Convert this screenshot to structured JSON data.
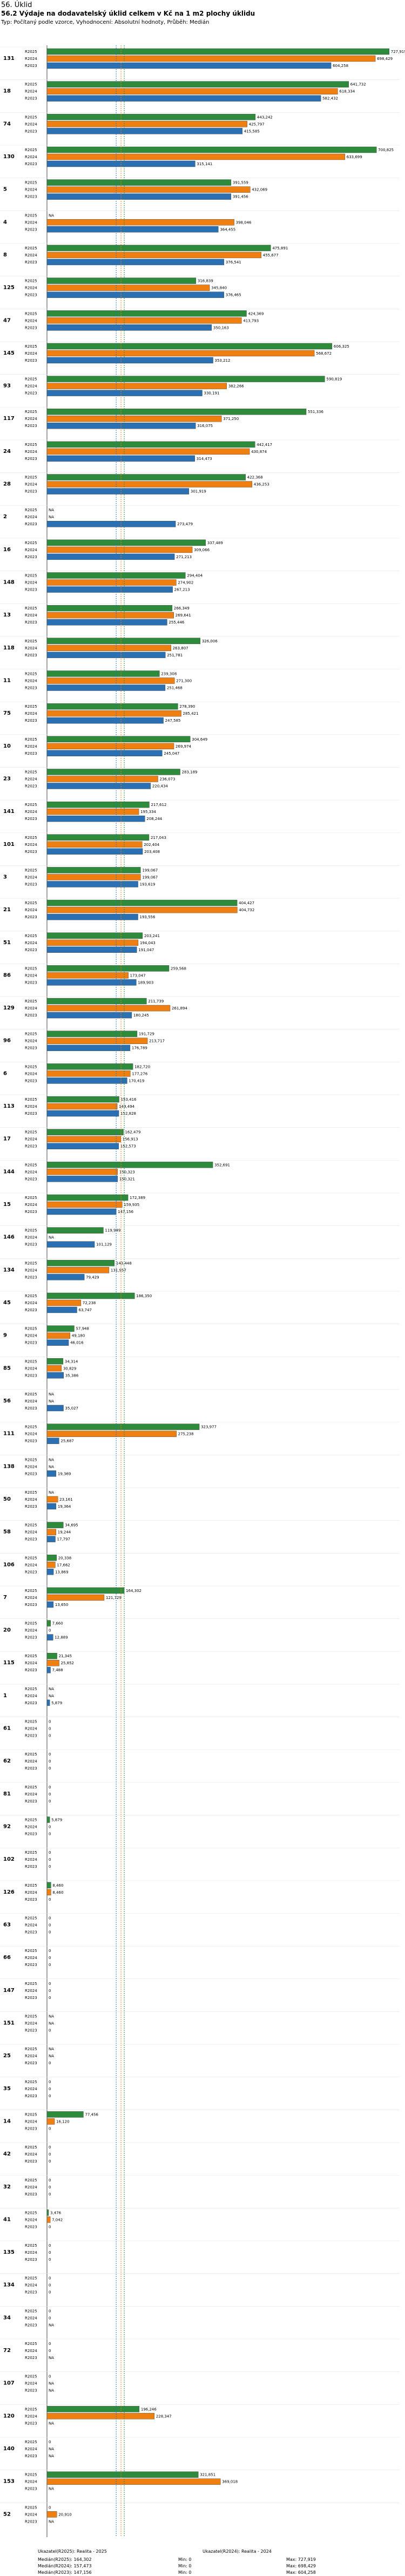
{
  "header": {
    "section": "56. Úklid",
    "title": "56.2 Výdaje na dodavatelský úklid celkem v Kč na 1 m2 plochy úklidu",
    "subtitle": "Typ: Počítaný podle vzorce, Vyhodnocení: Absolutní hodnoty, Průběh: Medián"
  },
  "colors": {
    "r2025": "#2e8b3c",
    "r2024": "#f07f12",
    "r2023": "#2a70b3",
    "line2025": "#2e8b3c",
    "line2024": "#f07f12",
    "line2023": "#2a70b3",
    "grid": "#bbbbbb"
  },
  "footer": {
    "items": [
      "Ukazatel(R2025): Realita - 2025",
      "Ukazatel(R2024): Realita - 2024",
      "Medián(R2025): 164,302",
      "Min: 0",
      "Max: 727,919",
      "Medián(R2024): 157,473",
      "Min: 0",
      "Max: 698,429",
      "Medián(R2023): 147,156",
      "Min: 0",
      "Max: 604,258"
    ]
  },
  "chart_data": {
    "type": "bar",
    "orientation": "horizontal",
    "title": "56.2 Výdaje na dodavatelský úklid celkem v Kč na 1 m2 plochy úklidu",
    "series_names": [
      "R2025",
      "R2024",
      "R2023"
    ],
    "xlim": [
      0,
      750
    ],
    "medians": {
      "R2025": 164.302,
      "R2024": 157.473,
      "R2023": 147.156
    },
    "groups": [
      {
        "id": "131",
        "values": [
          727.919,
          698.429,
          604.258
        ],
        "labels": [
          "727,919",
          "698,429",
          "604,258"
        ]
      },
      {
        "id": "18",
        "values": [
          641.732,
          618.334,
          582.432
        ],
        "labels": [
          "641,732",
          "618,334",
          "582,432"
        ]
      },
      {
        "id": "74",
        "values": [
          443.242,
          425.797,
          415.585
        ],
        "labels": [
          "443,242",
          "425,797",
          "415,585"
        ]
      },
      {
        "id": "130",
        "values": [
          700.825,
          633.699,
          315.141
        ],
        "labels": [
          "700,825",
          "633,699",
          "315,141"
        ]
      },
      {
        "id": "5",
        "values": [
          391.559,
          432.069,
          391.456
        ],
        "labels": [
          "391,559",
          "432,069",
          "391,456"
        ]
      },
      {
        "id": "4",
        "values": [
          null,
          398.046,
          364.455
        ],
        "labels": [
          "NA",
          "398,046",
          "364,455"
        ]
      },
      {
        "id": "8",
        "values": [
          475.891,
          455.677,
          376.541
        ],
        "labels": [
          "475,891",
          "455,677",
          "376,541"
        ]
      },
      {
        "id": "125",
        "values": [
          316.839,
          345.84,
          376.465
        ],
        "labels": [
          "316,839",
          "345,840",
          "376,465"
        ]
      },
      {
        "id": "47",
        "values": [
          424.369,
          413.793,
          350.163
        ],
        "labels": [
          "424,369",
          "413,793",
          "350,163"
        ]
      },
      {
        "id": "145",
        "values": [
          606.325,
          568.672,
          353.212
        ],
        "labels": [
          "606,325",
          "568,672",
          "353,212"
        ]
      },
      {
        "id": "93",
        "values": [
          590.819,
          382.266,
          330.191
        ],
        "labels": [
          "590,819",
          "382,266",
          "330,191"
        ]
      },
      {
        "id": "117",
        "values": [
          551.336,
          371.25,
          316.075
        ],
        "labels": [
          "551,336",
          "371,250",
          "316,075"
        ]
      },
      {
        "id": "24",
        "values": [
          442.417,
          430.874,
          314.473
        ],
        "labels": [
          "442,417",
          "430,874",
          "314,473"
        ]
      },
      {
        "id": "28",
        "values": [
          422.368,
          436.253,
          301.919
        ],
        "labels": [
          "422,368",
          "436,253",
          "301,919"
        ]
      },
      {
        "id": "2",
        "values": [
          null,
          null,
          273.479
        ],
        "labels": [
          "NA",
          "NA",
          "273,479"
        ]
      },
      {
        "id": "16",
        "values": [
          337.489,
          309.066,
          271.213
        ],
        "labels": [
          "337,489",
          "309,066",
          "271,213"
        ]
      },
      {
        "id": "148",
        "values": [
          294.404,
          274.902,
          267.213
        ],
        "labels": [
          "294,404",
          "274,902",
          "267,213"
        ]
      },
      {
        "id": "13",
        "values": [
          266.349,
          269.641,
          255.446
        ],
        "labels": [
          "266,349",
          "269,641",
          "255,446"
        ]
      },
      {
        "id": "118",
        "values": [
          326.006,
          263.807,
          251.781
        ],
        "labels": [
          "326,006",
          "263,807",
          "251,781"
        ]
      },
      {
        "id": "11",
        "values": [
          239.308,
          271.3,
          251.468
        ],
        "labels": [
          "239,308",
          "271,300",
          "251,468"
        ]
      },
      {
        "id": "75",
        "values": [
          278.39,
          285.421,
          247.585
        ],
        "labels": [
          "278,390",
          "285,421",
          "247,585"
        ]
      },
      {
        "id": "10",
        "values": [
          304.649,
          269.974,
          245.047
        ],
        "labels": [
          "304,649",
          "269,974",
          "245,047"
        ]
      },
      {
        "id": "23",
        "values": [
          283.189,
          236.073,
          220.434
        ],
        "labels": [
          "283,189",
          "236,073",
          "220,434"
        ]
      },
      {
        "id": "141",
        "values": [
          217.612,
          195.334,
          208.244
        ],
        "labels": [
          "217,612",
          "195,334",
          "208,244"
        ]
      },
      {
        "id": "101",
        "values": [
          217.043,
          202.404,
          203.408
        ],
        "labels": [
          "217,043",
          "202,404",
          "203,408"
        ]
      },
      {
        "id": "3",
        "values": [
          199.067,
          199.067,
          193.619
        ],
        "labels": [
          "199,067",
          "199,067",
          "193,619"
        ]
      },
      {
        "id": "21",
        "values": [
          404.427,
          404.732,
          193.556
        ],
        "labels": [
          "404,427",
          "404,732",
          "193,556"
        ]
      },
      {
        "id": "51",
        "values": [
          203.241,
          194.043,
          191.047
        ],
        "labels": [
          "203,241",
          "194,043",
          "191,047"
        ]
      },
      {
        "id": "86",
        "values": [
          259.568,
          173.047,
          189.903
        ],
        "labels": [
          "259,568",
          "173,047",
          "189,903"
        ]
      },
      {
        "id": "129",
        "values": [
          211.739,
          261.894,
          180.245
        ],
        "labels": [
          "211,739",
          "261,894",
          "180,245"
        ]
      },
      {
        "id": "96",
        "values": [
          191.729,
          213.717,
          176.789
        ],
        "labels": [
          "191,729",
          "213,717",
          "176,789"
        ]
      },
      {
        "id": "6",
        "values": [
          182.72,
          177.276,
          170.419
        ],
        "labels": [
          "182,720",
          "177,276",
          "170,419"
        ]
      },
      {
        "id": "113",
        "values": [
          153.416,
          149.494,
          152.828
        ],
        "labels": [
          "153,416",
          "149,494",
          "152,828"
        ]
      },
      {
        "id": "17",
        "values": [
          162.479,
          156.913,
          152.573
        ],
        "labels": [
          "162,479",
          "156,913",
          "152,573"
        ]
      },
      {
        "id": "144",
        "values": [
          352.691,
          150.323,
          150.321
        ],
        "labels": [
          "352,691",
          "150,323",
          "150,321"
        ]
      },
      {
        "id": "15",
        "values": [
          172.389,
          159.935,
          147.156
        ],
        "labels": [
          "172,389",
          "159,935",
          "147,156"
        ]
      },
      {
        "id": "146",
        "values": [
          119.949,
          null,
          101.129
        ],
        "labels": [
          "119,949",
          "NA",
          "101,129"
        ]
      },
      {
        "id": "134",
        "values": [
          143.448,
          131.957,
          79.429
        ],
        "labels": [
          "143,448",
          "131,957",
          "79,429"
        ]
      },
      {
        "id": "45",
        "values": [
          186.35,
          72.238,
          63.747
        ],
        "labels": [
          "186,350",
          "72,238",
          "63,747"
        ]
      },
      {
        "id": "9",
        "values": [
          57.948,
          49.18,
          46.016
        ],
        "labels": [
          "57,948",
          "49,180",
          "46,016"
        ]
      },
      {
        "id": "85",
        "values": [
          34.314,
          30.829,
          35.386
        ],
        "labels": [
          "34,314",
          "30,829",
          "35,386"
        ]
      },
      {
        "id": "56",
        "values": [
          null,
          null,
          35.027
        ],
        "labels": [
          "NA",
          "NA",
          "35,027"
        ]
      },
      {
        "id": "111",
        "values": [
          323.977,
          275.238,
          25.687
        ],
        "labels": [
          "323,977",
          "275,238",
          "25,687"
        ]
      },
      {
        "id": "138",
        "values": [
          null,
          null,
          19.369
        ],
        "labels": [
          "NA",
          "NA",
          "19,369"
        ]
      },
      {
        "id": "50",
        "values": [
          null,
          23.161,
          19.364
        ],
        "labels": [
          "NA",
          "23,161",
          "19,364"
        ]
      },
      {
        "id": "58",
        "values": [
          34.695,
          19.244,
          17.797
        ],
        "labels": [
          "34,695",
          "19,244",
          "17,797"
        ]
      },
      {
        "id": "106",
        "values": [
          20.338,
          17.662,
          13.869
        ],
        "labels": [
          "20,338",
          "17,662",
          "13,869"
        ]
      },
      {
        "id": "7",
        "values": [
          164.302,
          121.729,
          13.65
        ],
        "labels": [
          "164,302",
          "121,729",
          "13,650"
        ]
      },
      {
        "id": "20",
        "values": [
          7.66,
          0,
          12.889
        ],
        "labels": [
          "7,660",
          "0",
          "12,889"
        ]
      },
      {
        "id": "115",
        "values": [
          21.345,
          25.852,
          7.488
        ],
        "labels": [
          "21,345",
          "25,852",
          "7,488"
        ]
      },
      {
        "id": "1",
        "values": [
          null,
          null,
          5.879
        ],
        "labels": [
          "NA",
          "NA",
          "5,879"
        ]
      },
      {
        "id": "61",
        "values": [
          0,
          0,
          0
        ],
        "labels": [
          "0",
          "0",
          "0"
        ]
      },
      {
        "id": "62",
        "values": [
          0,
          0,
          0
        ],
        "labels": [
          "0",
          "0",
          "0"
        ]
      },
      {
        "id": "81",
        "values": [
          0,
          0,
          0
        ],
        "labels": [
          "0",
          "0",
          "0"
        ]
      },
      {
        "id": "92",
        "values": [
          5.879,
          0,
          0
        ],
        "labels": [
          "5,879",
          "0",
          "0"
        ]
      },
      {
        "id": "102",
        "values": [
          0,
          0,
          0
        ],
        "labels": [
          "0",
          "0",
          "0"
        ]
      },
      {
        "id": "126",
        "values": [
          8.46,
          8.46,
          0
        ],
        "labels": [
          "8,460",
          "8,460",
          "0"
        ]
      },
      {
        "id": "63",
        "values": [
          0,
          0,
          0
        ],
        "labels": [
          "0",
          "0",
          "0"
        ]
      },
      {
        "id": "66",
        "values": [
          0,
          0,
          0
        ],
        "labels": [
          "0",
          "0",
          "0"
        ]
      },
      {
        "id": "147",
        "values": [
          0,
          0,
          0
        ],
        "labels": [
          "0",
          "0",
          "0"
        ]
      },
      {
        "id": "151",
        "values": [
          null,
          null,
          0
        ],
        "labels": [
          "NA",
          "NA",
          "0"
        ]
      },
      {
        "id": "25",
        "values": [
          null,
          null,
          0
        ],
        "labels": [
          "NA",
          "NA",
          "0"
        ]
      },
      {
        "id": "35",
        "values": [
          0,
          0,
          0
        ],
        "labels": [
          "0",
          "0",
          "0"
        ]
      },
      {
        "id": "14",
        "values": [
          77.456,
          16.12,
          0
        ],
        "labels": [
          "77,456",
          "16,120",
          "0"
        ]
      },
      {
        "id": "42",
        "values": [
          0,
          0,
          0
        ],
        "labels": [
          "0",
          "0",
          "0"
        ]
      },
      {
        "id": "32",
        "values": [
          0,
          0,
          0
        ],
        "labels": [
          "0",
          "0",
          "0"
        ]
      },
      {
        "id": "41",
        "values": [
          3.476,
          7.042,
          0
        ],
        "labels": [
          "3,476",
          "7,042",
          "0"
        ]
      },
      {
        "id": "135",
        "values": [
          0,
          0,
          0
        ],
        "labels": [
          "0",
          "0",
          "0"
        ]
      },
      {
        "id": "134",
        "values": [
          0,
          0,
          0
        ],
        "labels": [
          "0",
          "0",
          "0"
        ]
      },
      {
        "id": "34",
        "values": [
          0,
          0,
          null
        ],
        "labels": [
          "0",
          "0",
          "NA"
        ]
      },
      {
        "id": "72",
        "values": [
          0,
          0,
          null
        ],
        "labels": [
          "0",
          "0",
          "NA"
        ]
      },
      {
        "id": "107",
        "values": [
          0,
          null,
          null
        ],
        "labels": [
          "0",
          "NA",
          "NA"
        ]
      },
      {
        "id": "120",
        "values": [
          196.246,
          228.347,
          null
        ],
        "labels": [
          "196,246",
          "228,347",
          "NA"
        ]
      },
      {
        "id": "140",
        "values": [
          0,
          null,
          null
        ],
        "labels": [
          "0",
          "NA",
          "NA"
        ]
      },
      {
        "id": "153",
        "values": [
          321.851,
          369.018,
          null
        ],
        "labels": [
          "321,851",
          "369,018",
          "NA"
        ]
      },
      {
        "id": "52",
        "values": [
          0,
          20.91,
          null
        ],
        "labels": [
          "0",
          "20,910",
          "NA"
        ]
      }
    ]
  }
}
